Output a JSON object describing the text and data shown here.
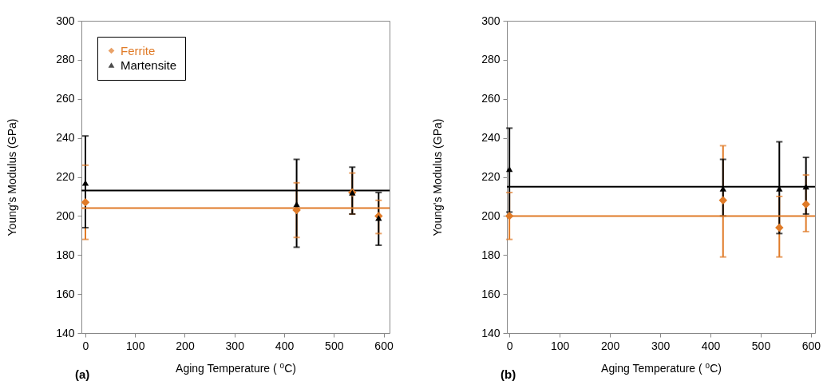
{
  "chart_data": [
    {
      "type": "scatter",
      "xlabel": "Aging Temperature ( $^{o}$C)",
      "ylabel": "Young's Modulus (GPa)",
      "annotations": [
        "(a)"
      ],
      "x": [
        0,
        425,
        537,
        590
      ],
      "xlim": [
        -8,
        612
      ],
      "ylim": [
        140,
        300
      ],
      "xticks": [
        0,
        100,
        200,
        300,
        400,
        500,
        600
      ],
      "yticks": [
        140,
        160,
        180,
        200,
        220,
        240,
        260,
        280,
        300
      ],
      "legend": "top left",
      "grid": false,
      "series": [
        {
          "name": "Ferrite",
          "color": "#e07b28",
          "marker": "diamond",
          "values": [
            207,
            203,
            212,
            200
          ],
          "errors": [
            [
              188,
              226
            ],
            [
              189,
              217
            ],
            [
              201,
              222
            ],
            [
              191,
              208
            ]
          ]
        },
        {
          "name": "Martensite",
          "color": "#000000",
          "marker": "triangle",
          "values": [
            217,
            206,
            212,
            199
          ],
          "errors": [
            [
              194,
              241
            ],
            [
              184,
              229
            ],
            [
              201,
              225
            ],
            [
              185,
              212
            ]
          ]
        }
      ],
      "ref_lines": [
        {
          "axis": "y",
          "value": 204,
          "color": "#e07b28"
        },
        {
          "axis": "y",
          "value": 213,
          "color": "#000000"
        }
      ]
    },
    {
      "type": "scatter",
      "xlabel": "Aging Temperature ( $^{o}$C)",
      "ylabel": "Young's Modulus (GPa)",
      "annotations": [
        "(b)"
      ],
      "x": [
        0,
        425,
        537,
        590
      ],
      "xlim": [
        -5,
        608
      ],
      "ylim": [
        140,
        300
      ],
      "xticks": [
        0,
        100,
        200,
        300,
        400,
        500,
        600
      ],
      "yticks": [
        140,
        160,
        180,
        200,
        220,
        240,
        260,
        280,
        300
      ],
      "legend": "top left",
      "grid": false,
      "series": [
        {
          "name": "Ferrite",
          "color": "#e07b28",
          "marker": "diamond",
          "values": [
            200,
            208,
            194,
            206
          ],
          "errors": [
            [
              188,
              212
            ],
            [
              179,
              236
            ],
            [
              179,
              210
            ],
            [
              192,
              221
            ]
          ]
        },
        {
          "name": "Martensite",
          "color": "#000000",
          "marker": "triangle",
          "values": [
            224,
            214,
            214,
            215
          ],
          "errors": [
            [
              202,
              245
            ],
            [
              200,
              229
            ],
            [
              191,
              238
            ],
            [
              201,
              230
            ]
          ]
        }
      ],
      "ref_lines": [
        {
          "axis": "y",
          "value": 200,
          "color": "#e07b28"
        },
        {
          "axis": "y",
          "value": 215,
          "color": "#000000"
        }
      ]
    }
  ]
}
